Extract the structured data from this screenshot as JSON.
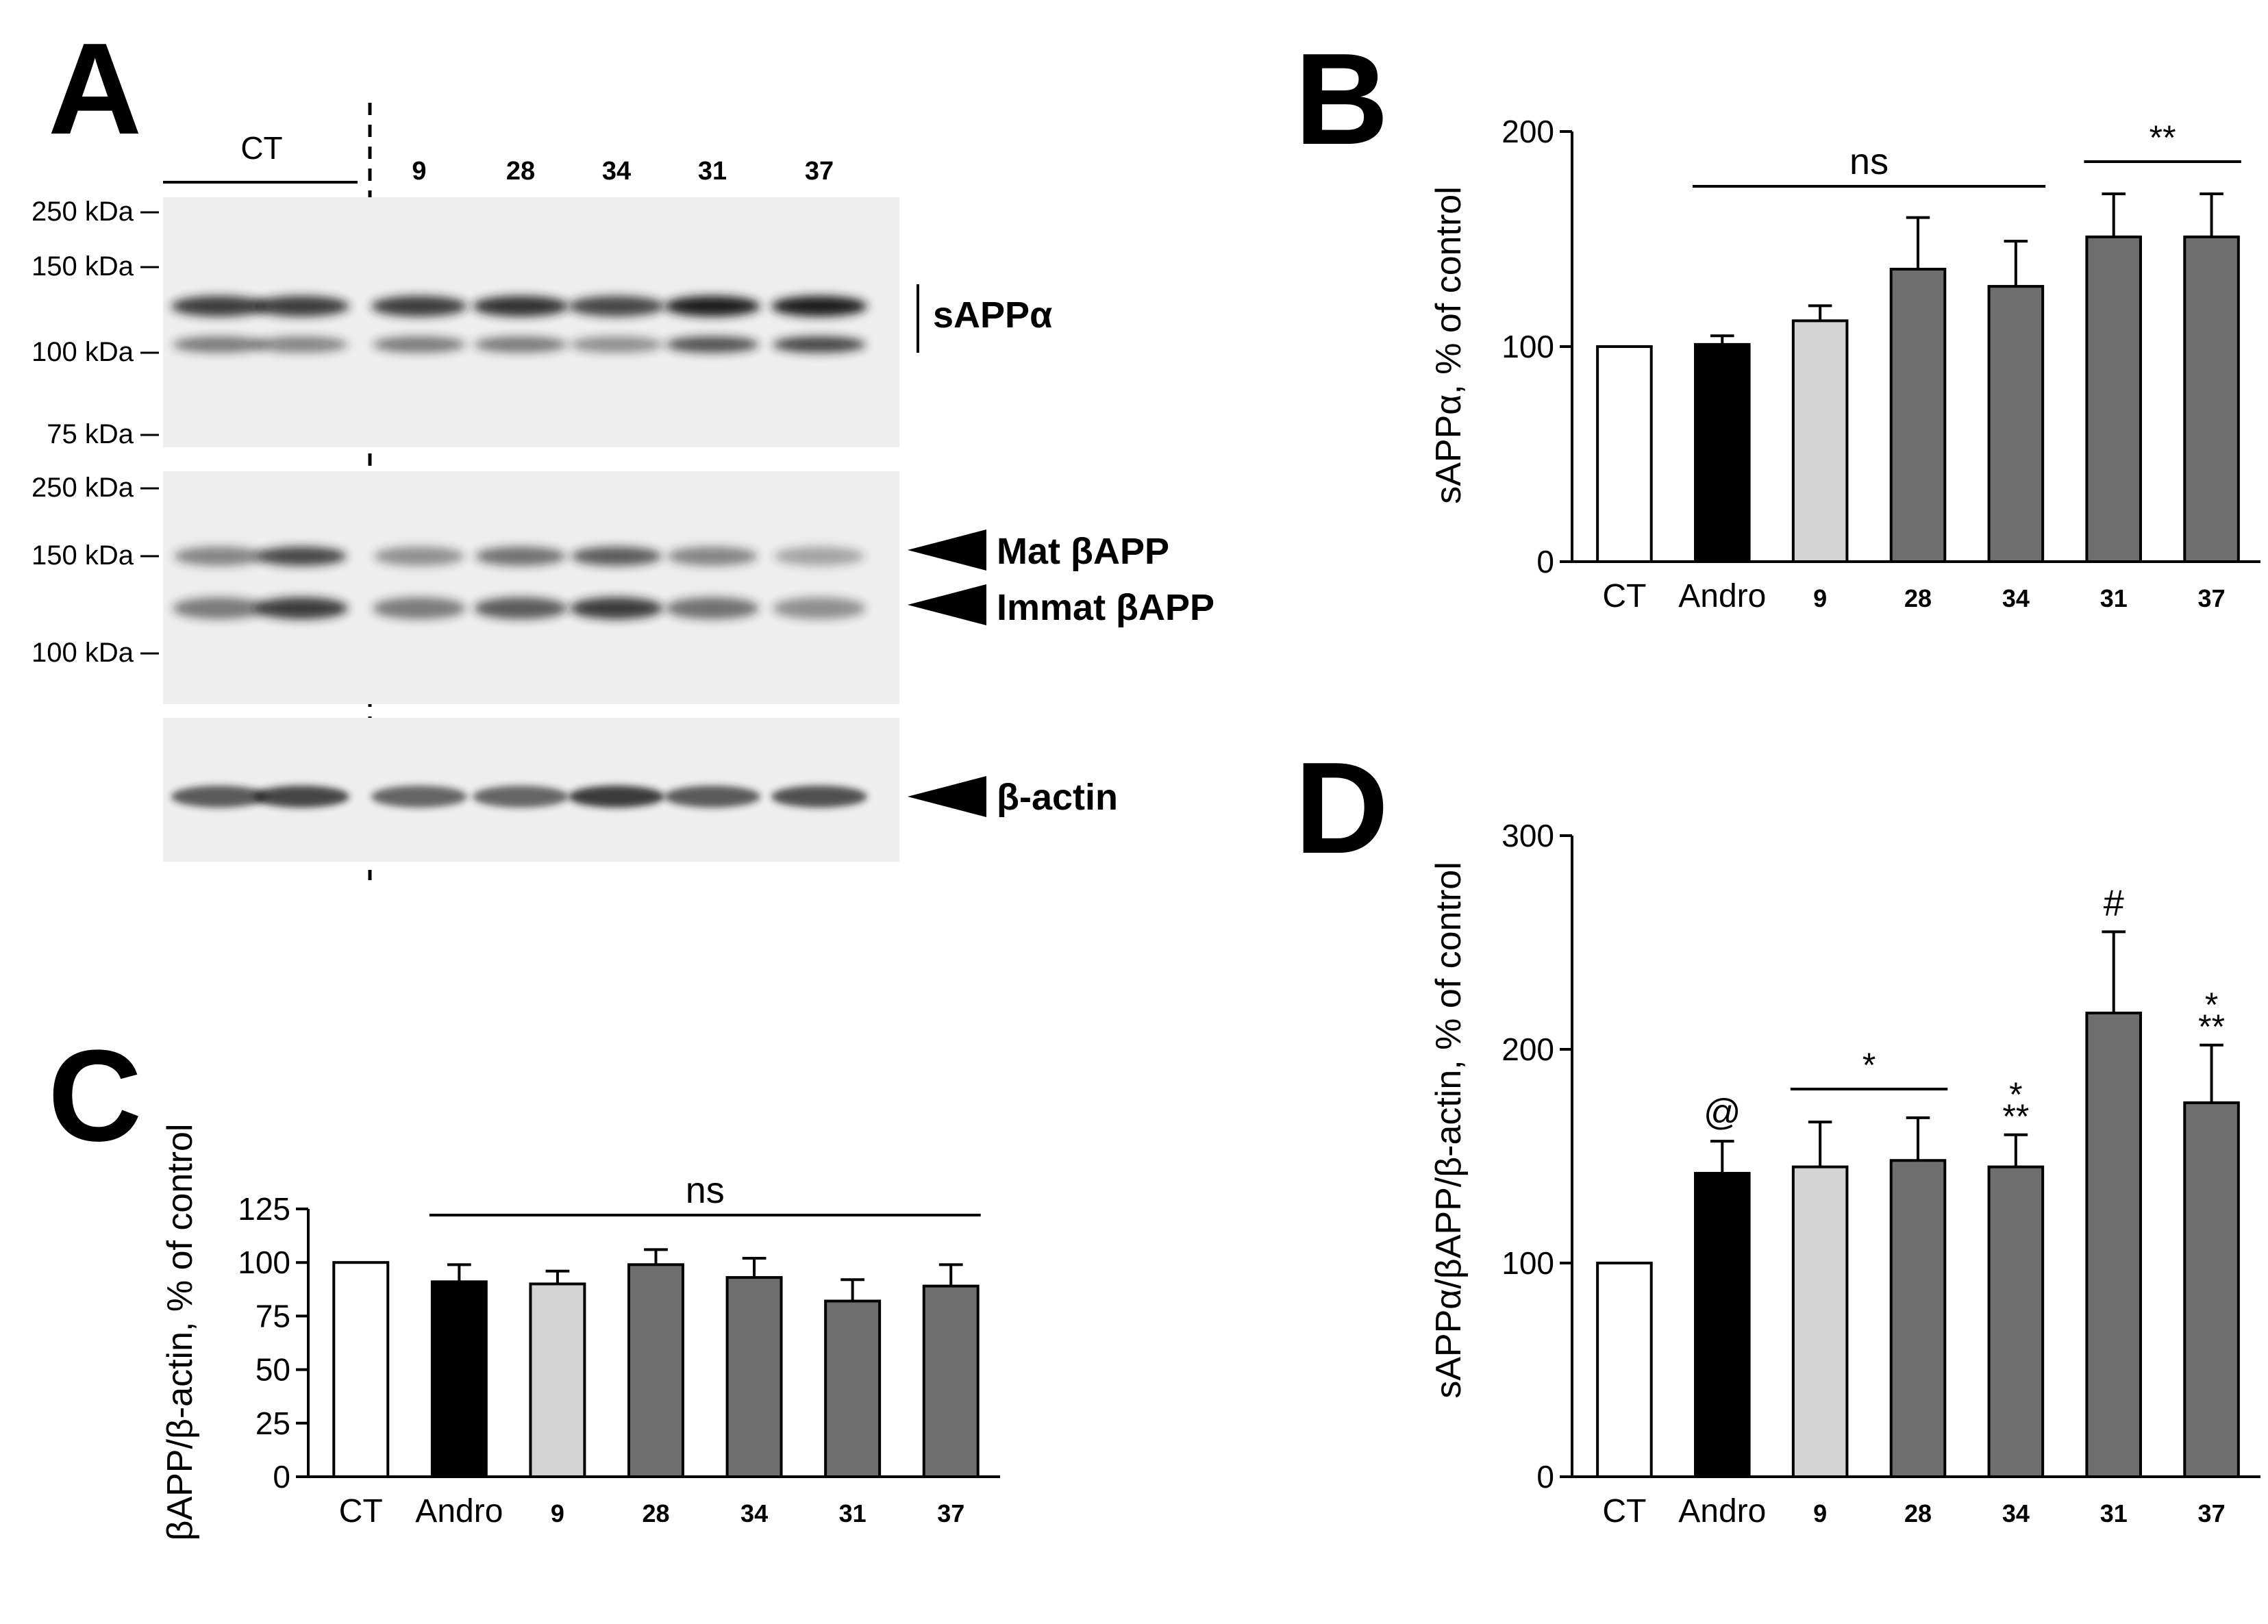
{
  "panel_letters": [
    "A",
    "B",
    "C",
    "D"
  ],
  "blot": {
    "ct_label": "CT",
    "lane_labels": [
      "9",
      "28",
      "34",
      "31",
      "37"
    ],
    "top_panel_markers": [
      "250 kDa",
      "150 kDa",
      "100 kDa",
      "75 kDa"
    ],
    "middle_panel_markers": [
      "250 kDa",
      "150 kDa",
      "100 kDa"
    ],
    "band_labels": {
      "sapp": "sAPPα",
      "mat": "Mat βAPP",
      "immat": "Immat βAPP",
      "actin": "β-actin"
    },
    "colors": {
      "background": "#eeeeee",
      "band": "#1a1a1a"
    }
  },
  "chart_data": [
    {
      "panel": "B",
      "type": "bar",
      "ylabel": "sAPPα, % of control",
      "categories": [
        "CT",
        "Andro",
        "9",
        "28",
        "34",
        "31",
        "37"
      ],
      "values": [
        100,
        101,
        112,
        136,
        128,
        151,
        151
      ],
      "errors": [
        0,
        4,
        7,
        24,
        21,
        20,
        20
      ],
      "bar_colors": [
        "#ffffff",
        "#000000",
        "#d4d4d4",
        "#6e6e6e",
        "#6e6e6e",
        "#6e6e6e",
        "#6e6e6e"
      ],
      "ylim": [
        0,
        200
      ],
      "yticks": [
        "0",
        "100",
        "200"
      ],
      "annotations": [
        {
          "text": "ns",
          "from": 1,
          "to": 4,
          "line": true
        },
        {
          "text": "**",
          "from": 5,
          "to": 6,
          "line": true
        }
      ]
    },
    {
      "panel": "C",
      "type": "bar",
      "ylabel": "βAPP/β-actin, % of control",
      "categories": [
        "CT",
        "Andro",
        "9",
        "28",
        "34",
        "31",
        "37"
      ],
      "values": [
        100,
        91,
        90,
        99,
        93,
        82,
        89
      ],
      "errors": [
        0,
        8,
        6,
        7,
        9,
        10,
        10
      ],
      "bar_colors": [
        "#ffffff",
        "#000000",
        "#d4d4d4",
        "#6e6e6e",
        "#6e6e6e",
        "#6e6e6e",
        "#6e6e6e"
      ],
      "ylim": [
        0,
        125
      ],
      "yticks": [
        "0",
        "25",
        "50",
        "75",
        "100",
        "125"
      ],
      "annotations": [
        {
          "text": "ns",
          "from": 1,
          "to": 6,
          "line": true
        }
      ]
    },
    {
      "panel": "D",
      "type": "bar",
      "ylabel": "sAPPα/βAPP/β-actin, % of control",
      "categories": [
        "CT",
        "Andro",
        "9",
        "28",
        "34",
        "31",
        "37"
      ],
      "values": [
        100,
        142,
        145,
        148,
        145,
        217,
        175
      ],
      "errors": [
        0,
        15,
        21,
        20,
        15,
        38,
        27
      ],
      "bar_colors": [
        "#ffffff",
        "#000000",
        "#d4d4d4",
        "#6e6e6e",
        "#6e6e6e",
        "#6e6e6e",
        "#6e6e6e"
      ],
      "ylim": [
        0,
        300
      ],
      "yticks": [
        "0",
        "100",
        "200",
        "300"
      ],
      "annotations": [
        {
          "text": "@",
          "at": 1
        },
        {
          "text": "*",
          "from": 2,
          "to": 3,
          "line": true
        },
        {
          "text": "*",
          "at": 4,
          "line2": "**"
        },
        {
          "text": "#",
          "at": 5
        },
        {
          "text": "*",
          "at": 6,
          "line2": "**"
        }
      ]
    }
  ]
}
